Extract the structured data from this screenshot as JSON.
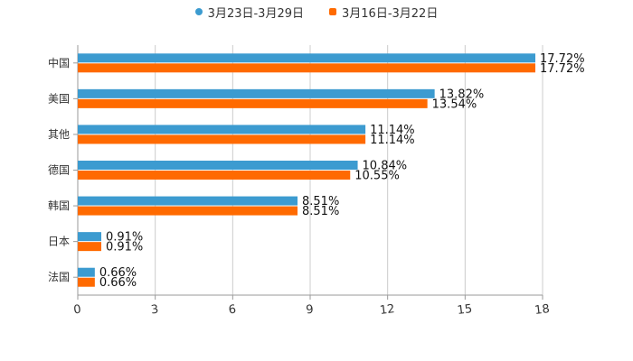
{
  "chart_data": {
    "type": "bar",
    "orientation": "horizontal",
    "title": "",
    "xlabel": "",
    "ylabel": "",
    "xlim": [
      0,
      18
    ],
    "xticks": [
      0,
      3,
      6,
      9,
      12,
      15,
      18
    ],
    "grid": true,
    "legend_position": "top-center",
    "categories": [
      "中国",
      "美国",
      "其他",
      "德国",
      "韩国",
      "日本",
      "法国"
    ],
    "series": [
      {
        "name": "3月23日-3月29日",
        "color": "#3c9bd0",
        "marker": "circle",
        "values": [
          17.72,
          13.82,
          11.14,
          10.84,
          8.51,
          0.91,
          0.66
        ],
        "labels": [
          "17.72%",
          "13.82%",
          "11.14%",
          "10.84%",
          "8.51%",
          "0.91%",
          "0.66%"
        ]
      },
      {
        "name": "3月16日-3月22日",
        "color": "#ff6a00",
        "marker": "square",
        "values": [
          17.72,
          13.54,
          11.14,
          10.55,
          8.51,
          0.91,
          0.66
        ],
        "labels": [
          "17.72%",
          "13.54%",
          "11.14%",
          "10.55%",
          "8.51%",
          "0.91%",
          "0.66%"
        ]
      }
    ]
  }
}
